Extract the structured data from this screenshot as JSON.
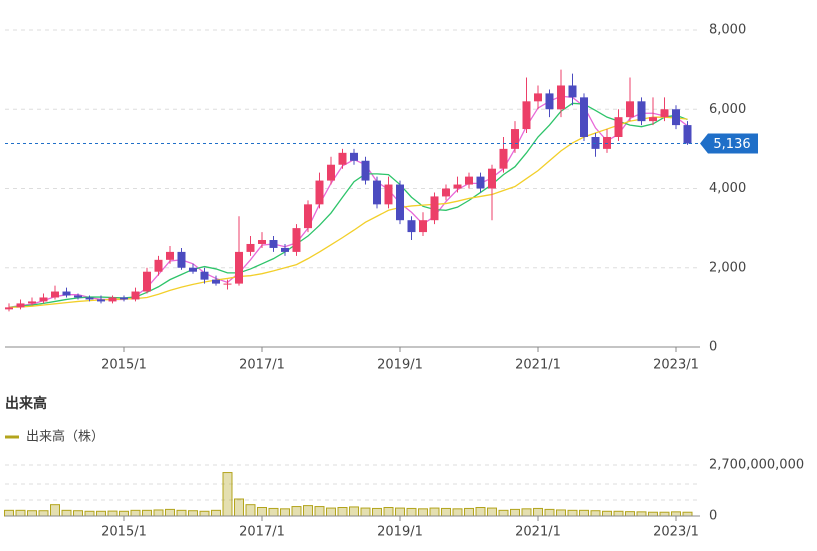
{
  "chart_data": [
    {
      "type": "candlestick",
      "x": [
        "2013/5",
        "2013/7",
        "2013/9",
        "2013/11",
        "2014/1",
        "2014/3",
        "2014/5",
        "2014/7",
        "2014/9",
        "2014/11",
        "2015/1",
        "2015/3",
        "2015/5",
        "2015/7",
        "2015/9",
        "2015/11",
        "2016/1",
        "2016/3",
        "2016/5",
        "2016/7",
        "2016/9",
        "2016/11",
        "2017/1",
        "2017/3",
        "2017/5",
        "2017/7",
        "2017/9",
        "2017/11",
        "2018/1",
        "2018/3",
        "2018/5",
        "2018/7",
        "2018/9",
        "2018/11",
        "2019/1",
        "2019/3",
        "2019/5",
        "2019/7",
        "2019/9",
        "2019/11",
        "2020/1",
        "2020/3",
        "2020/5",
        "2020/7",
        "2020/9",
        "2020/11",
        "2021/1",
        "2021/3",
        "2021/5",
        "2021/7",
        "2021/9",
        "2021/11",
        "2022/1",
        "2022/3",
        "2022/5",
        "2022/7",
        "2022/9",
        "2022/11",
        "2023/1",
        "2023/3"
      ],
      "open": [
        950,
        1000,
        1100,
        1150,
        1250,
        1400,
        1300,
        1250,
        1200,
        1150,
        1250,
        1200,
        1400,
        1900,
        2200,
        2400,
        2000,
        1900,
        1700,
        1600,
        1600,
        2400,
        2600,
        2700,
        2500,
        2400,
        3000,
        3600,
        4200,
        4600,
        4900,
        4700,
        4200,
        3600,
        4100,
        3200,
        2900,
        3200,
        3800,
        4000,
        4100,
        4300,
        4000,
        4500,
        5000,
        5500,
        6200,
        6400,
        6000,
        6600,
        6300,
        5300,
        5000,
        5300,
        5800,
        6200,
        5700,
        5800,
        6000,
        5600
      ],
      "high": [
        1100,
        1200,
        1250,
        1350,
        1550,
        1500,
        1350,
        1300,
        1300,
        1300,
        1300,
        1500,
        2000,
        2300,
        2550,
        2500,
        2100,
        2000,
        1800,
        1700,
        3300,
        2800,
        2900,
        2800,
        2600,
        3100,
        3700,
        4400,
        4800,
        5000,
        5000,
        4800,
        4300,
        4300,
        4200,
        3300,
        3400,
        3900,
        4100,
        4300,
        4400,
        4400,
        4600,
        5300,
        5700,
        6800,
        6600,
        6500,
        7000,
        6900,
        6400,
        5400,
        5500,
        6000,
        6800,
        6300,
        6300,
        6300,
        6100,
        5700
      ],
      "low": [
        900,
        950,
        1050,
        1100,
        1200,
        1250,
        1200,
        1150,
        1100,
        1100,
        1150,
        1150,
        1350,
        1800,
        2100,
        1950,
        1850,
        1600,
        1550,
        1450,
        1550,
        2300,
        2500,
        2400,
        2300,
        2300,
        2900,
        3500,
        4100,
        4500,
        4600,
        4100,
        3500,
        3500,
        3100,
        2700,
        2800,
        3100,
        3700,
        3900,
        4000,
        3900,
        3200,
        4400,
        4900,
        5400,
        6000,
        5800,
        5800,
        6100,
        5200,
        4800,
        4900,
        5200,
        5700,
        5600,
        5600,
        5700,
        5500,
        5100
      ],
      "close": [
        1000,
        1100,
        1150,
        1250,
        1400,
        1300,
        1250,
        1200,
        1150,
        1250,
        1200,
        1400,
        1900,
        2200,
        2400,
        2000,
        1900,
        1700,
        1600,
        1600,
        2400,
        2600,
        2700,
        2500,
        2400,
        3000,
        3600,
        4200,
        4600,
        4900,
        4700,
        4200,
        3600,
        4100,
        3200,
        2900,
        3200,
        3800,
        4000,
        4100,
        4300,
        4000,
        4500,
        5000,
        5500,
        6200,
        6400,
        6000,
        6600,
        6300,
        5300,
        5000,
        5300,
        5800,
        6200,
        5700,
        5800,
        6000,
        5600,
        5136
      ],
      "up_color": "#ec3f68",
      "down_color": "#4b4bc0",
      "series": [
        {
          "color": "#e868d8",
          "values": [
            1000,
            1050,
            1080,
            1170,
            1270,
            1320,
            1320,
            1250,
            1200,
            1200,
            1200,
            1280,
            1500,
            1830,
            2170,
            2200,
            2100,
            1870,
            1730,
            1630,
            1870,
            2200,
            2570,
            2600,
            2530,
            2630,
            3000,
            3600,
            4130,
            4570,
            4730,
            4600,
            4170,
            3970,
            3630,
            3400,
            3100,
            3300,
            3670,
            3970,
            4130,
            4130,
            4270,
            4500,
            5000,
            5570,
            6030,
            6200,
            6330,
            6300,
            6070,
            5530,
            5200,
            5370,
            5770,
            5900,
            5900,
            5830,
            5800,
            5580
          ]
        },
        {
          "color": "#2ec46a",
          "values": [
            1000,
            1030,
            1060,
            1100,
            1150,
            1200,
            1240,
            1260,
            1260,
            1250,
            1240,
            1260,
            1380,
            1520,
            1700,
            1830,
            1960,
            2030,
            1970,
            1870,
            1870,
            1970,
            2100,
            2230,
            2400,
            2600,
            2800,
            3070,
            3380,
            3780,
            4170,
            4370,
            4370,
            4350,
            4100,
            3780,
            3550,
            3470,
            3450,
            3530,
            3700,
            3900,
            4100,
            4350,
            4550,
            4900,
            5300,
            5600,
            5950,
            6150,
            6130,
            5970,
            5800,
            5700,
            5600,
            5560,
            5630,
            5800,
            5850,
            5740
          ]
        },
        {
          "color": "#f2cf2a",
          "values": [
            1000,
            1010,
            1030,
            1060,
            1090,
            1120,
            1150,
            1170,
            1190,
            1200,
            1210,
            1220,
            1250,
            1330,
            1430,
            1510,
            1580,
            1640,
            1690,
            1730,
            1780,
            1800,
            1850,
            1920,
            2000,
            2080,
            2230,
            2400,
            2580,
            2760,
            2950,
            3150,
            3300,
            3450,
            3520,
            3560,
            3580,
            3600,
            3620,
            3680,
            3750,
            3800,
            3850,
            3950,
            4050,
            4250,
            4450,
            4700,
            4950,
            5150,
            5300,
            5400,
            5500,
            5600,
            5700,
            5750,
            5800,
            5800,
            5780,
            5750
          ]
        }
      ],
      "ylim": [
        0,
        8000
      ],
      "yticks": [
        0,
        {
          "value": 2000,
          "label": "2,000"
        },
        {
          "value": 4000,
          "label": "4,000"
        },
        {
          "value": 6000,
          "label": "6,000"
        },
        {
          "value": 8000,
          "label": "8,000"
        }
      ],
      "xticks": [
        "2015/1",
        "2017/1",
        "2019/1",
        "2021/1",
        "2023/1"
      ],
      "last_value": 5136,
      "last_label": "5,136",
      "last_color": "#1f6fc8",
      "grid": true
    },
    {
      "type": "bar",
      "title": "出来高",
      "x": [
        "2013/5",
        "2013/7",
        "2013/9",
        "2013/11",
        "2014/1",
        "2014/3",
        "2014/5",
        "2014/7",
        "2014/9",
        "2014/11",
        "2015/1",
        "2015/3",
        "2015/5",
        "2015/7",
        "2015/9",
        "2015/11",
        "2016/1",
        "2016/3",
        "2016/5",
        "2016/7",
        "2016/9",
        "2016/11",
        "2017/1",
        "2017/3",
        "2017/5",
        "2017/7",
        "2017/9",
        "2017/11",
        "2018/1",
        "2018/3",
        "2018/5",
        "2018/7",
        "2018/9",
        "2018/11",
        "2019/1",
        "2019/3",
        "2019/5",
        "2019/7",
        "2019/9",
        "2019/11",
        "2020/1",
        "2020/3",
        "2020/5",
        "2020/7",
        "2020/9",
        "2020/11",
        "2021/1",
        "2021/3",
        "2021/5",
        "2021/7",
        "2021/9",
        "2021/11",
        "2022/1",
        "2022/3",
        "2022/5",
        "2022/7",
        "2022/9",
        "2022/11",
        "2023/1",
        "2023/3"
      ],
      "series": [
        {
          "name": "出来高（株）",
          "color": "#b3a41c",
          "values": [
            300000000,
            300000000,
            280000000,
            280000000,
            600000000,
            300000000,
            280000000,
            250000000,
            250000000,
            260000000,
            250000000,
            300000000,
            300000000,
            320000000,
            350000000,
            300000000,
            280000000,
            250000000,
            300000000,
            2300000000,
            900000000,
            600000000,
            450000000,
            400000000,
            380000000,
            500000000,
            550000000,
            500000000,
            420000000,
            450000000,
            480000000,
            420000000,
            400000000,
            450000000,
            420000000,
            400000000,
            380000000,
            420000000,
            400000000,
            380000000,
            400000000,
            450000000,
            420000000,
            300000000,
            350000000,
            380000000,
            400000000,
            350000000,
            320000000,
            300000000,
            300000000,
            280000000,
            250000000,
            250000000,
            230000000,
            220000000,
            200000000,
            200000000,
            220000000,
            200000000
          ]
        }
      ],
      "ylim": [
        0,
        2700000000
      ],
      "yticks": [
        0,
        {
          "value": 2700000000,
          "label": "2,700,000,000"
        }
      ],
      "xticks": [
        "2015/1",
        "2017/1",
        "2019/1",
        "2021/1",
        "2023/1"
      ],
      "grid": true
    }
  ]
}
